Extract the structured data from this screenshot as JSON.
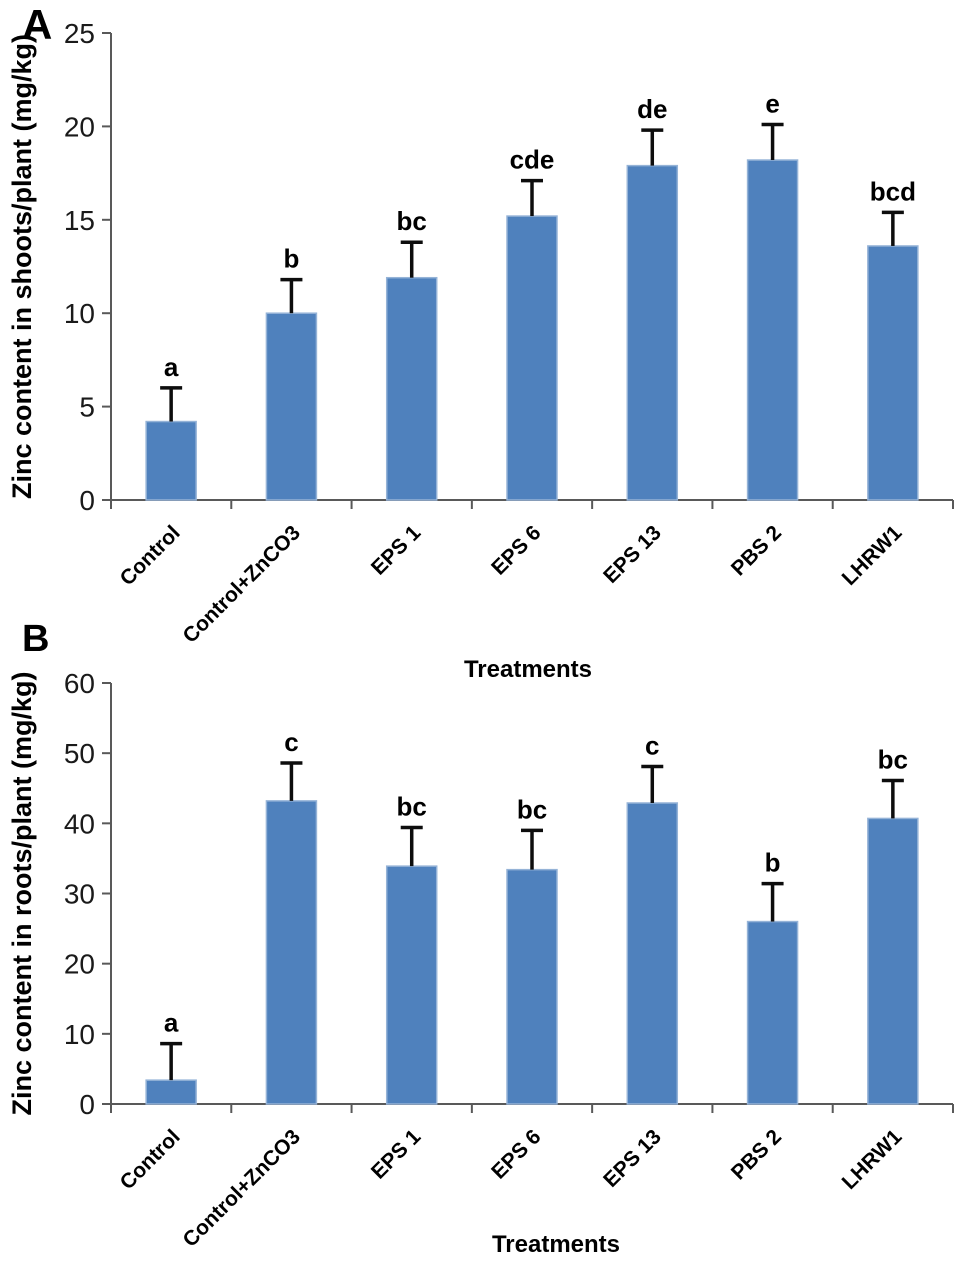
{
  "colors": {
    "bar_fill": "#4F81BD",
    "bar_edge": "#95B3D7",
    "error_bar": "#0d0d0d",
    "axis_line": "#595959",
    "tick_text": "#1a1a1a",
    "label_text": "#000000"
  },
  "chart_data": [
    {
      "type": "bar",
      "panel_label": "A",
      "title": "",
      "ylabel": "Zinc content in shoots/plant (mg/kg)",
      "xlabel": "Treatments",
      "ylim": [
        0,
        25
      ],
      "yticks": [
        0,
        5,
        10,
        15,
        20,
        25
      ],
      "grid": false,
      "legend": "none",
      "categories": [
        "Control",
        "Control+ZnCO3",
        "EPS 1",
        "EPS 6",
        "EPS 13",
        "PBS 2",
        "LHRW1"
      ],
      "values": [
        4.2,
        10.0,
        11.9,
        15.2,
        17.9,
        18.2,
        13.6
      ],
      "error_plus": [
        1.8,
        1.8,
        1.9,
        1.9,
        1.9,
        1.9,
        1.8
      ],
      "sig_letters": [
        "a",
        "b",
        "bc",
        "cde",
        "de",
        "e",
        "bcd"
      ]
    },
    {
      "type": "bar",
      "panel_label": "B",
      "title": "",
      "ylabel": "Zinc content in roots/plant (mg/kg)",
      "xlabel": "Treatments",
      "ylim": [
        0,
        60
      ],
      "yticks": [
        0,
        10,
        20,
        30,
        40,
        50,
        60
      ],
      "grid": false,
      "legend": "none",
      "categories": [
        "Control",
        "Control+ZnCO3",
        "EPS 1",
        "EPS 6",
        "EPS 13",
        "PBS 2",
        "LHRW1"
      ],
      "values": [
        3.4,
        43.2,
        33.9,
        33.4,
        42.9,
        26.0,
        40.7
      ],
      "error_plus": [
        5.2,
        5.4,
        5.5,
        5.6,
        5.2,
        5.4,
        5.4
      ],
      "sig_letters": [
        "a",
        "c",
        "bc",
        "bc",
        "c",
        "b",
        "bc"
      ]
    }
  ]
}
